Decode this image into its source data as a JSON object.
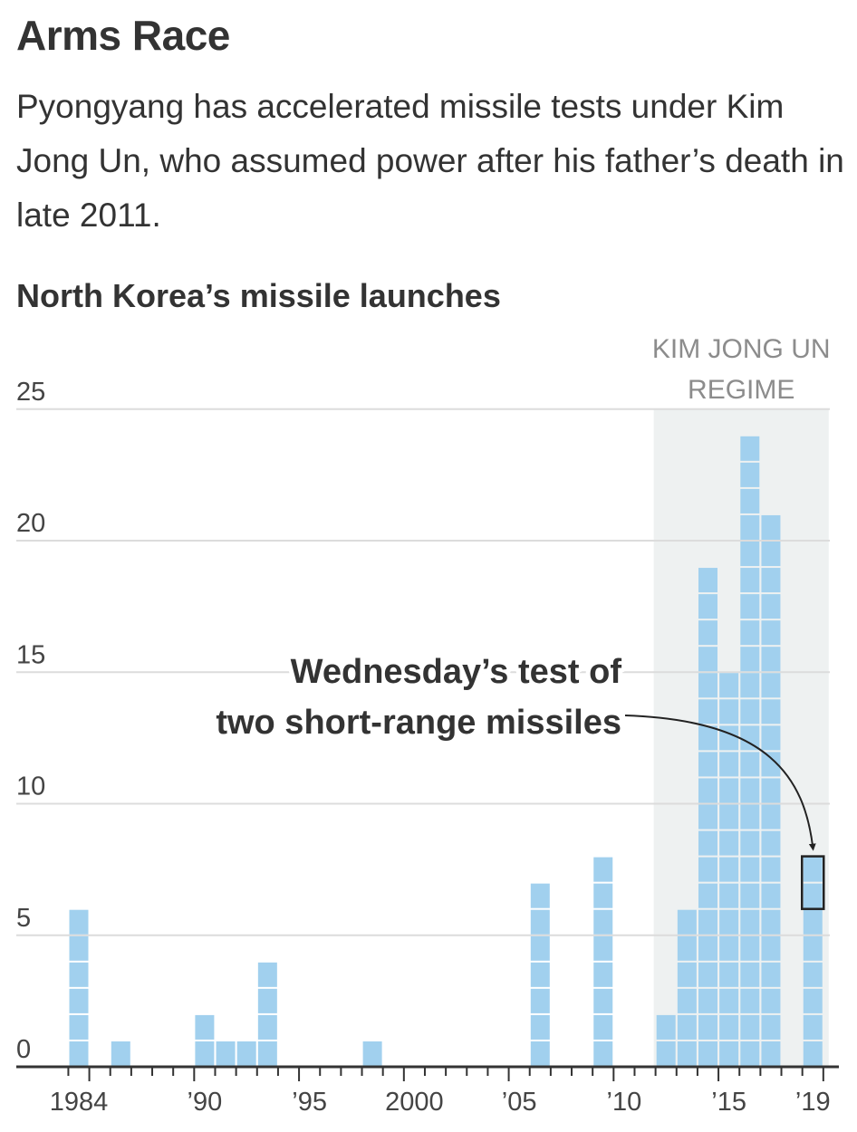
{
  "headline": "Arms Race",
  "dek": "Pyongyang has accelerated missile tests under Kim Jong Un, who assumed power after his father’s death in late 2011.",
  "chart_data": {
    "type": "bar",
    "title": "North Korea’s missile launches",
    "xlabel": "",
    "ylabel": "",
    "x": [
      1984,
      1985,
      1986,
      1987,
      1988,
      1989,
      1990,
      1991,
      1992,
      1993,
      1994,
      1995,
      1996,
      1997,
      1998,
      1999,
      2000,
      2001,
      2002,
      2003,
      2004,
      2005,
      2006,
      2007,
      2008,
      2009,
      2010,
      2011,
      2012,
      2013,
      2014,
      2015,
      2016,
      2017,
      2018,
      2019
    ],
    "values": [
      6,
      0,
      1,
      0,
      0,
      0,
      2,
      1,
      1,
      4,
      0,
      0,
      0,
      0,
      1,
      0,
      0,
      0,
      0,
      0,
      0,
      0,
      7,
      0,
      0,
      8,
      0,
      0,
      2,
      6,
      19,
      15,
      24,
      21,
      0,
      8
    ],
    "ylim": [
      0,
      25
    ],
    "yticks": [
      0,
      5,
      10,
      15,
      20,
      25
    ],
    "ytick_labels": [
      "0",
      "5",
      "10",
      "15",
      "20",
      "25"
    ],
    "xticks": [
      1984,
      1990,
      1995,
      2000,
      2005,
      2010,
      2015,
      2019
    ],
    "xtick_labels": [
      "1984",
      "’90",
      "’95",
      "2000",
      "’05",
      "’10",
      "’15",
      "’19"
    ],
    "grid": true,
    "bar_color": "#a1d0ee",
    "shaded_region": {
      "from": 2012,
      "to": 2019,
      "label_lines": [
        "KIM JONG UN",
        "REGIME"
      ],
      "color": "#eef1f1"
    },
    "annotation": {
      "lines": [
        "Wednesday’s test of",
        "two short-range missiles"
      ],
      "target_x": 2019,
      "target_values": [
        7,
        8
      ]
    }
  }
}
